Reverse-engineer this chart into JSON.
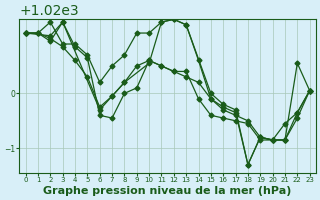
{
  "background_color": "#d8eff8",
  "plot_bg_color": "#d8eff8",
  "line_color": "#1a5c1a",
  "grid_color": "#a8c8b8",
  "xlabel": "Graphe pression niveau de la mer (hPa)",
  "xlabel_fontsize": 8,
  "tick_label_color": "#1a5c1a",
  "ylim": [
    1018.55,
    1021.35
  ],
  "xlim": [
    -0.5,
    23.5
  ],
  "yticks": [
    1019,
    1020
  ],
  "xticks": [
    0,
    1,
    2,
    3,
    4,
    5,
    6,
    7,
    8,
    9,
    10,
    11,
    12,
    13,
    14,
    15,
    16,
    17,
    18,
    19,
    20,
    21,
    22,
    23
  ],
  "series": [
    {
      "x": [
        0,
        1,
        2,
        3,
        4,
        5,
        6,
        7,
        8,
        9,
        10,
        11,
        12,
        13,
        14,
        15,
        16,
        17,
        18,
        19,
        20,
        21,
        22,
        23
      ],
      "y": [
        1021.1,
        1021.1,
        1021.3,
        1020.9,
        1020.9,
        1020.7,
        1020.2,
        1020.5,
        1020.7,
        1021.1,
        1021.1,
        1021.3,
        1021.35,
        1021.25,
        1020.6,
        1019.9,
        1019.75,
        1019.65,
        1018.7,
        1019.2,
        1019.15,
        1019.15,
        1020.55,
        1020.05
      ]
    },
    {
      "x": [
        0,
        1,
        2,
        3,
        4,
        5,
        6,
        7,
        8,
        9,
        10,
        11,
        12,
        13,
        14,
        15,
        16,
        17,
        18,
        19,
        20,
        21,
        22,
        23
      ],
      "y": [
        1021.1,
        1021.1,
        1021.0,
        1020.85,
        1020.6,
        1020.3,
        1019.75,
        1019.95,
        1020.2,
        1020.5,
        1020.6,
        1020.5,
        1020.4,
        1020.3,
        1020.2,
        1019.9,
        1019.7,
        1019.6,
        1019.5,
        1019.2,
        1019.15,
        1019.15,
        1019.55,
        1020.05
      ]
    },
    {
      "x": [
        0,
        1,
        2,
        3,
        4,
        5,
        6,
        7,
        8,
        9,
        10,
        11,
        12,
        13,
        14,
        15,
        16,
        17,
        18,
        19,
        20,
        21,
        22,
        23
      ],
      "y": [
        1021.1,
        1021.1,
        1020.95,
        1021.3,
        1020.85,
        1020.65,
        1019.6,
        1019.55,
        1020.0,
        1020.1,
        1020.6,
        1020.5,
        1020.4,
        1020.4,
        1019.9,
        1019.6,
        1019.55,
        1019.5,
        1019.45,
        1019.15,
        1019.15,
        1019.15,
        1019.65,
        1020.05
      ]
    },
    {
      "x": [
        0,
        2,
        3,
        6,
        7,
        8,
        10,
        11,
        12,
        13,
        15,
        16,
        17,
        18,
        19,
        20,
        21,
        22,
        23
      ],
      "y": [
        1021.1,
        1021.05,
        1021.3,
        1019.7,
        1019.95,
        1020.2,
        1020.55,
        1021.3,
        1021.35,
        1021.25,
        1020.0,
        1019.8,
        1019.7,
        1018.7,
        1019.2,
        1019.15,
        1019.45,
        1019.65,
        1020.05
      ]
    }
  ]
}
